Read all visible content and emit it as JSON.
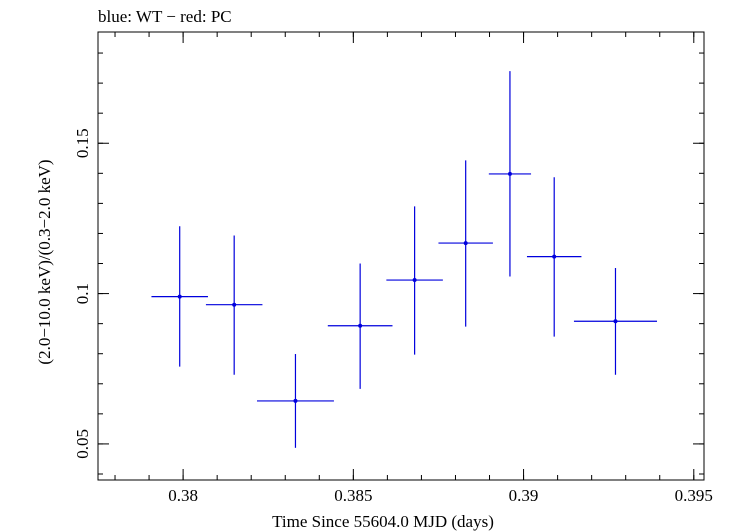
{
  "chart_data": {
    "type": "scatter",
    "title": "blue: WT − red: PC",
    "xlabel": "Time Since 55604.0 MJD (days)",
    "ylabel": "(2.0−10.0 keV)/(0.3−2.0 keV)",
    "xlim": [
      0.3775,
      0.3953
    ],
    "ylim": [
      0.038,
      0.187
    ],
    "x_ticks": [
      0.38,
      0.385,
      0.39,
      0.395
    ],
    "x_tick_labels": [
      "0.38",
      "0.385",
      "0.39",
      "0.395"
    ],
    "y_ticks": [
      0.05,
      0.1,
      0.15
    ],
    "y_tick_labels": [
      "0.05",
      "0.1",
      "0.15"
    ],
    "x_minor_step": 0.001,
    "y_minor_step": 0.01,
    "series": [
      {
        "color": "#0000dd",
        "points": [
          {
            "x": 0.3799,
            "xerr": 0.00083,
            "y": 0.099,
            "ylo": 0.0757,
            "yhi": 0.1224
          },
          {
            "x": 0.3815,
            "xerr": 0.00083,
            "y": 0.0963,
            "ylo": 0.073,
            "yhi": 0.1193
          },
          {
            "x": 0.3833,
            "xerr": 0.00113,
            "y": 0.0643,
            "ylo": 0.0487,
            "yhi": 0.0799
          },
          {
            "x": 0.3852,
            "xerr": 0.00095,
            "y": 0.0893,
            "ylo": 0.0683,
            "yhi": 0.11
          },
          {
            "x": 0.3868,
            "xerr": 0.00083,
            "y": 0.1045,
            "ylo": 0.0797,
            "yhi": 0.129
          },
          {
            "x": 0.3883,
            "xerr": 0.0008,
            "y": 0.1168,
            "ylo": 0.089,
            "yhi": 0.1443
          },
          {
            "x": 0.3896,
            "xerr": 0.00062,
            "y": 0.1398,
            "ylo": 0.1057,
            "yhi": 0.174
          },
          {
            "x": 0.3909,
            "xerr": 0.0008,
            "y": 0.1123,
            "ylo": 0.0857,
            "yhi": 0.1387
          },
          {
            "x": 0.3927,
            "xerr": 0.00122,
            "y": 0.0908,
            "ylo": 0.073,
            "yhi": 0.1085
          }
        ]
      }
    ]
  }
}
